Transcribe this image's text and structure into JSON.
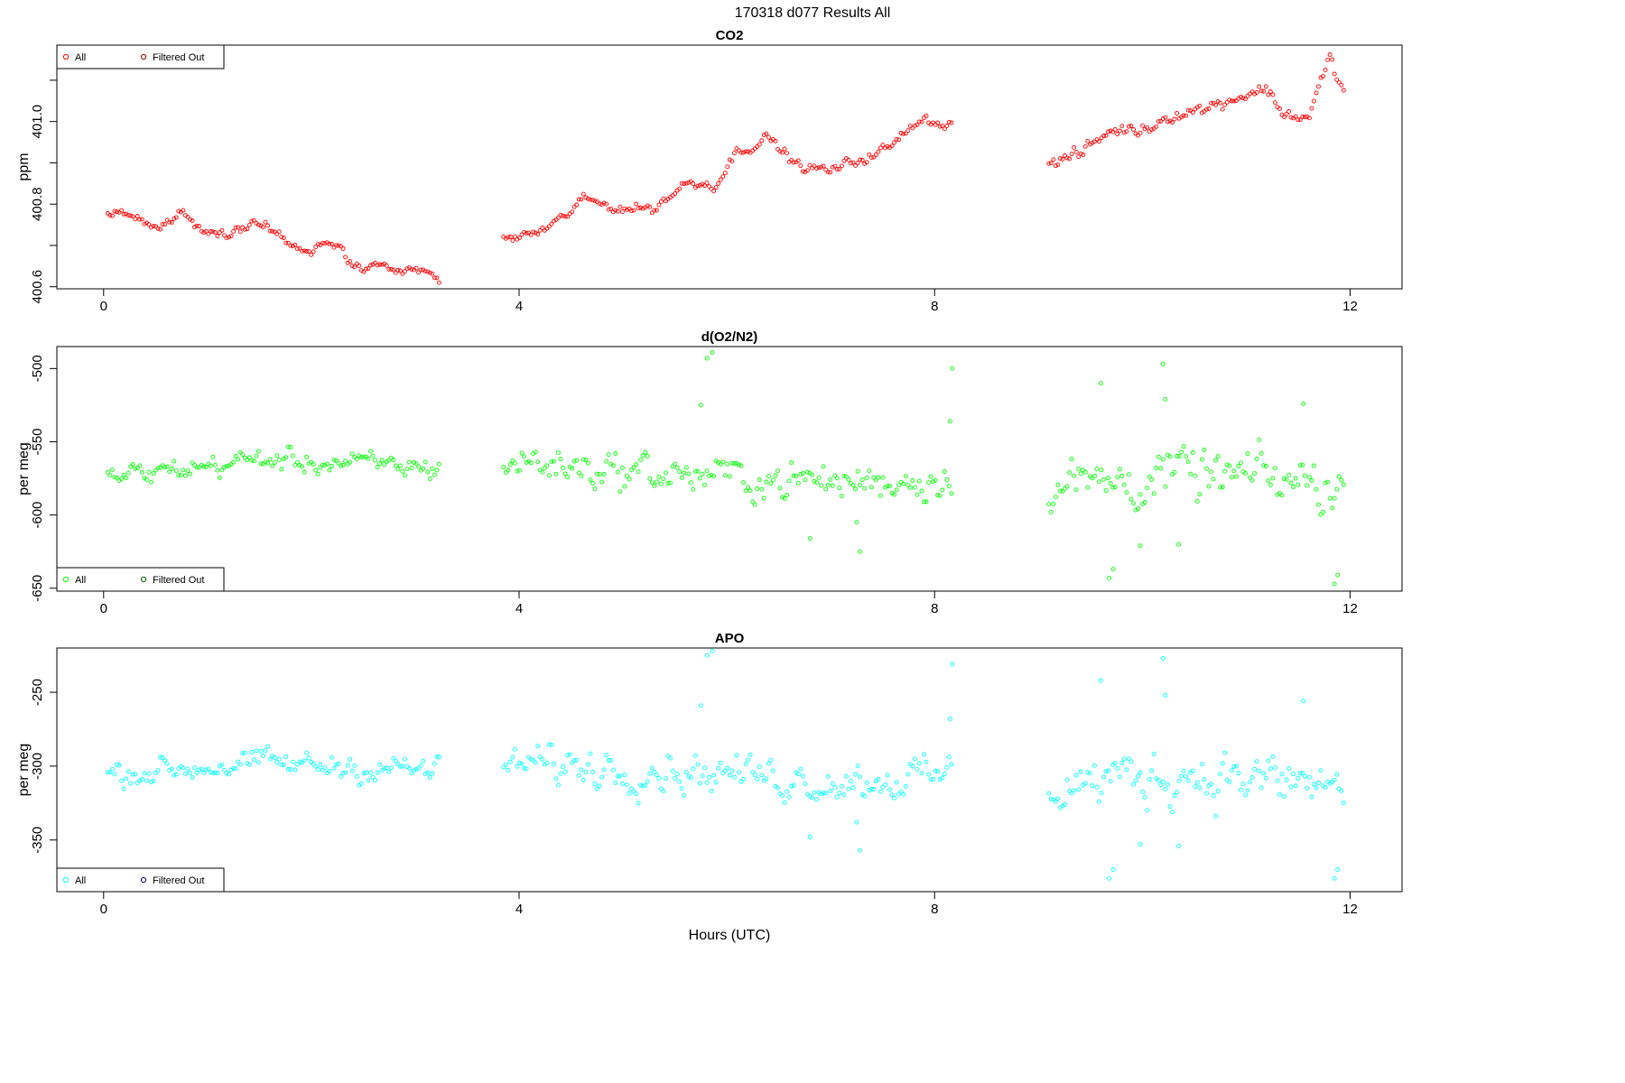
{
  "page_title": "170318   d077   Results All",
  "chart_data": [
    {
      "type": "scatter",
      "title": "CO2",
      "ylabel": "ppm",
      "xlabel": "",
      "xlim": [
        -0.45,
        12.5
      ],
      "ylim": [
        400.595,
        401.185
      ],
      "xticks": [
        0,
        4,
        8,
        12
      ],
      "yticks": [
        400.6,
        400.7,
        400.8,
        400.9,
        401.0,
        401.1
      ],
      "ytick_labels": [
        "400.6",
        "",
        "400.8",
        "",
        "401.0",
        ""
      ],
      "legend": {
        "position": "top-left",
        "entries": [
          "All",
          "Filtered Out"
        ]
      },
      "series": [
        {
          "name": "All",
          "color": "#ff0000",
          "shape": "circle",
          "x": [],
          "y": []
        },
        {
          "name": "Filtered Out",
          "color": "#8b0000",
          "shape": "circle",
          "x": [],
          "y": []
        }
      ],
      "segments": [
        {
          "x_start": 0.04,
          "x_end": 3.25,
          "anchors": [
            [
              0.04,
              400.78
            ],
            [
              0.3,
              400.77
            ],
            [
              0.5,
              400.74
            ],
            [
              0.75,
              400.78
            ],
            [
              1.0,
              400.72
            ],
            [
              1.3,
              400.74
            ],
            [
              1.5,
              400.76
            ],
            [
              1.8,
              400.7
            ],
            [
              2.0,
              400.68
            ],
            [
              2.2,
              400.72
            ],
            [
              2.4,
              400.65
            ],
            [
              2.7,
              400.65
            ],
            [
              2.9,
              400.64
            ],
            [
              3.1,
              400.64
            ],
            [
              3.25,
              400.62
            ]
          ],
          "noise": 0.012
        },
        {
          "x_start": 3.85,
          "x_end": 8.18,
          "anchors": [
            [
              3.85,
              400.72
            ],
            [
              4.1,
              400.72
            ],
            [
              4.4,
              400.76
            ],
            [
              4.6,
              400.81
            ],
            [
              5.0,
              400.79
            ],
            [
              5.3,
              400.79
            ],
            [
              5.6,
              400.85
            ],
            [
              5.9,
              400.85
            ],
            [
              6.1,
              400.93
            ],
            [
              6.4,
              400.96
            ],
            [
              6.7,
              400.89
            ],
            [
              7.0,
              400.88
            ],
            [
              7.3,
              400.91
            ],
            [
              7.6,
              400.94
            ],
            [
              7.85,
              401.01
            ],
            [
              8.18,
              400.99
            ]
          ],
          "noise": 0.012
        },
        {
          "x_start": 9.1,
          "x_end": 11.95,
          "anchors": [
            [
              9.1,
              400.9
            ],
            [
              9.4,
              400.92
            ],
            [
              9.7,
              400.98
            ],
            [
              10.0,
              400.98
            ],
            [
              10.3,
              401.02
            ],
            [
              10.6,
              401.03
            ],
            [
              10.9,
              401.06
            ],
            [
              11.2,
              401.08
            ],
            [
              11.35,
              401.02
            ],
            [
              11.6,
              401.01
            ],
            [
              11.8,
              401.15
            ],
            [
              11.95,
              401.07
            ]
          ],
          "noise": 0.015
        }
      ]
    },
    {
      "type": "scatter",
      "title": "d(O2/N2)",
      "ylabel": "per meg",
      "xlabel": "",
      "xlim": [
        -0.45,
        12.5
      ],
      "ylim": [
        -652,
        -485
      ],
      "xticks": [
        0,
        4,
        8,
        12
      ],
      "yticks": [
        -650,
        -600,
        -550,
        -500
      ],
      "ytick_labels": [
        "-650",
        "-600",
        "-550",
        "-500"
      ],
      "legend": {
        "position": "bottom-left",
        "entries": [
          "All",
          "Filtered Out"
        ]
      },
      "series": [
        {
          "name": "All",
          "color": "#00ff00",
          "shape": "circle",
          "x": [],
          "y": []
        },
        {
          "name": "Filtered Out",
          "color": "#006400",
          "shape": "circle",
          "x": [],
          "y": []
        }
      ],
      "segments": [
        {
          "x_start": 0.04,
          "x_end": 3.25,
          "anchors": [
            [
              0.04,
              -575
            ],
            [
              1.5,
              -562
            ],
            [
              3.25,
              -568
            ]
          ],
          "noise": 7
        },
        {
          "x_start": 3.85,
          "x_end": 8.18,
          "anchors": [
            [
              3.85,
              -563
            ],
            [
              5.5,
              -572
            ],
            [
              7.0,
              -578
            ],
            [
              8.18,
              -575
            ]
          ],
          "noise": 12
        },
        {
          "x_start": 9.1,
          "x_end": 11.95,
          "anchors": [
            [
              9.1,
              -580
            ],
            [
              10.5,
              -573
            ],
            [
              11.95,
              -580
            ]
          ],
          "noise": 17
        }
      ],
      "outliers": [
        [
          5.81,
          -493
        ],
        [
          5.86,
          -489
        ],
        [
          5.75,
          -525
        ],
        [
          8.17,
          -500
        ],
        [
          8.15,
          -536
        ],
        [
          9.6,
          -510
        ],
        [
          10.2,
          -497
        ],
        [
          10.22,
          -521
        ],
        [
          11.55,
          -524
        ],
        [
          9.72,
          -637
        ],
        [
          9.68,
          -643
        ],
        [
          11.88,
          -641
        ],
        [
          11.85,
          -647
        ],
        [
          6.8,
          -616
        ],
        [
          7.28,
          -625
        ],
        [
          7.25,
          -605
        ],
        [
          9.98,
          -621
        ],
        [
          10.35,
          -620
        ]
      ]
    },
    {
      "type": "scatter",
      "title": "APO",
      "ylabel": "per meg",
      "xlabel": "Hours (UTC)",
      "xlim": [
        -0.45,
        12.5
      ],
      "ylim": [
        -385,
        -220
      ],
      "xticks": [
        0,
        4,
        8,
        12
      ],
      "yticks": [
        -350,
        -300,
        -250
      ],
      "ytick_labels": [
        "-350",
        "-300",
        "-250"
      ],
      "legend": {
        "position": "bottom-left",
        "entries": [
          "All",
          "Filtered Out"
        ]
      },
      "series": [
        {
          "name": "All",
          "color": "#00ffff",
          "shape": "circle",
          "x": [],
          "y": []
        },
        {
          "name": "Filtered Out",
          "color": "#00008b",
          "shape": "circle",
          "x": [],
          "y": []
        }
      ],
      "segments": [
        {
          "x_start": 0.04,
          "x_end": 3.25,
          "anchors": [
            [
              0.04,
              -305
            ],
            [
              1.5,
              -298
            ],
            [
              3.25,
              -303
            ]
          ],
          "noise": 8
        },
        {
          "x_start": 3.85,
          "x_end": 8.18,
          "anchors": [
            [
              3.85,
              -298
            ],
            [
              5.5,
              -302
            ],
            [
              7.0,
              -310
            ],
            [
              8.18,
              -307
            ]
          ],
          "noise": 12
        },
        {
          "x_start": 9.1,
          "x_end": 11.95,
          "anchors": [
            [
              9.1,
              -312
            ],
            [
              10.5,
              -305
            ],
            [
              11.95,
              -315
            ]
          ],
          "noise": 17
        }
      ],
      "outliers": [
        [
          5.81,
          -225
        ],
        [
          5.86,
          -222
        ],
        [
          5.75,
          -259
        ],
        [
          8.17,
          -231
        ],
        [
          8.15,
          -268
        ],
        [
          9.6,
          -242
        ],
        [
          10.2,
          -227
        ],
        [
          10.22,
          -252
        ],
        [
          11.55,
          -256
        ],
        [
          9.72,
          -370
        ],
        [
          9.68,
          -376
        ],
        [
          11.88,
          -370
        ],
        [
          11.85,
          -376
        ],
        [
          6.8,
          -348
        ],
        [
          7.28,
          -357
        ],
        [
          7.25,
          -338
        ],
        [
          9.98,
          -353
        ],
        [
          10.35,
          -354
        ]
      ]
    }
  ]
}
